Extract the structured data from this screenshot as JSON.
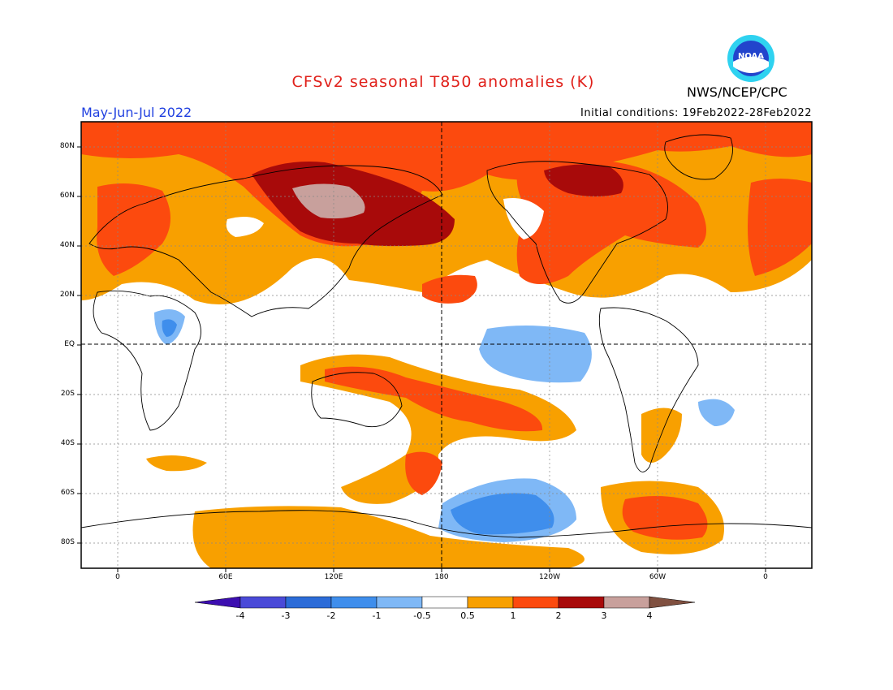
{
  "title": "CFSv2 seasonal T850 anomalies (K)",
  "season": "May-Jun-Jul 2022",
  "initial_conditions": "Initial conditions: 19Feb2022-28Feb2022",
  "agency": "NWS/NCEP/CPC",
  "logo_text": "NOAA",
  "lat_labels": [
    "80N",
    "60N",
    "40N",
    "20N",
    "EQ",
    "20S",
    "40S",
    "60S",
    "80S"
  ],
  "lon_labels": [
    "0",
    "60E",
    "120E",
    "180",
    "120W",
    "60W",
    "0"
  ],
  "colorbar": {
    "labels": [
      "-4",
      "-3",
      "-2",
      "-1",
      "-0.5",
      "0.5",
      "1",
      "2",
      "3",
      "4"
    ],
    "colors": [
      "#3c0eb0",
      "#4a4ad8",
      "#2c6cd8",
      "#3f8eec",
      "#7fb8f6",
      "#ffffff",
      "#f8a000",
      "#fc4a0e",
      "#a80a0a",
      "#c8a09c",
      "#805040"
    ]
  },
  "colors": {
    "title": "#e0201a",
    "season": "#1f3fe0"
  }
}
